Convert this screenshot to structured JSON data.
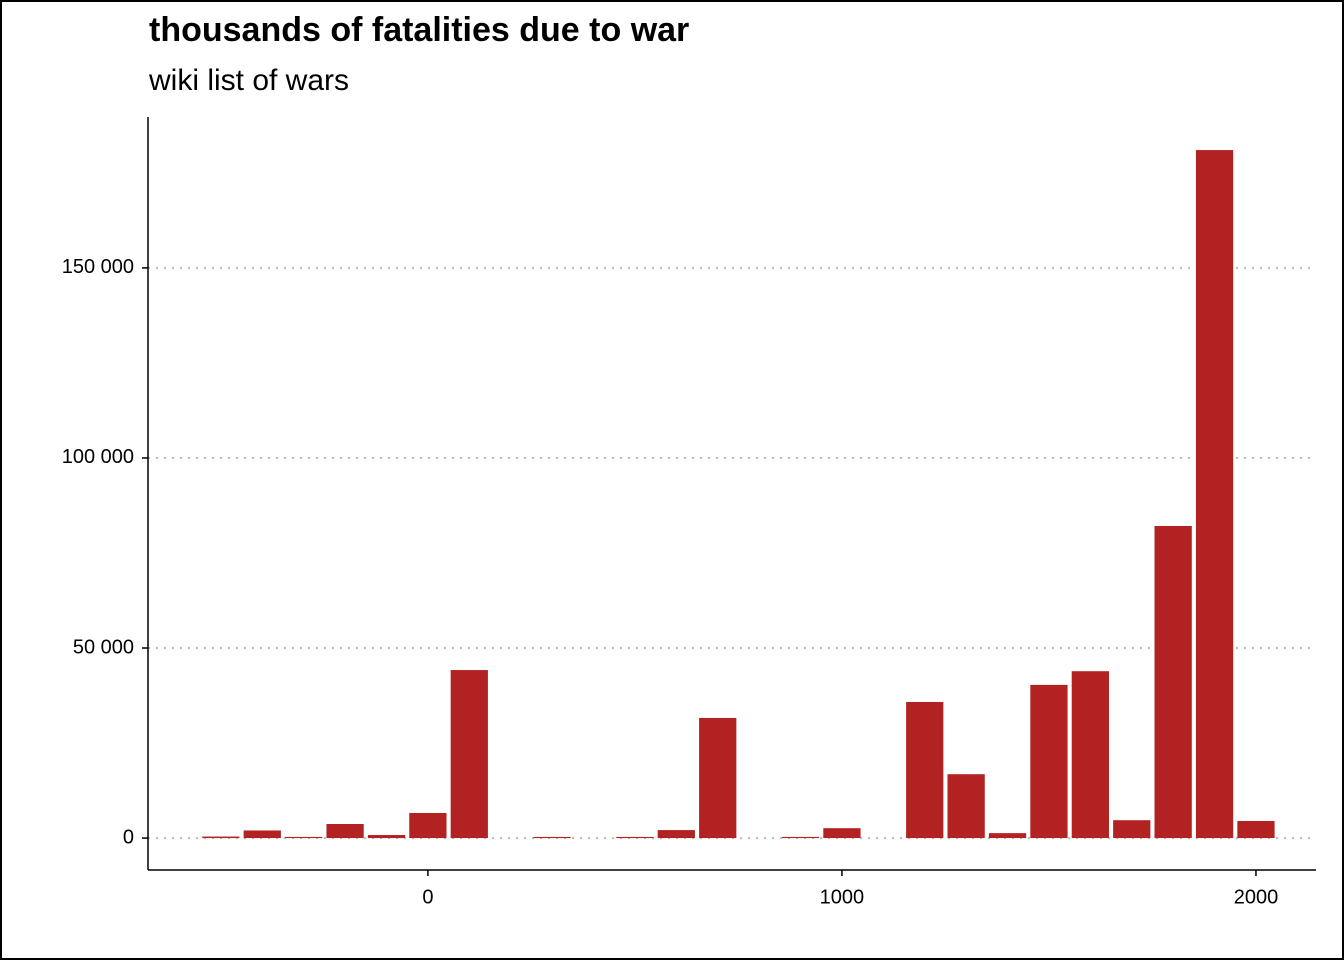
{
  "chart_data": {
    "type": "bar",
    "title": "thousands of fatalities due to war",
    "subtitle": "wiki list of wars",
    "x": [
      -500,
      -400,
      -300,
      -200,
      -100,
      0,
      100,
      300,
      500,
      600,
      700,
      900,
      1000,
      1200,
      1300,
      1400,
      1500,
      1600,
      1700,
      1800,
      1900,
      2000
    ],
    "values": [
      400,
      2000,
      300,
      3700,
      800,
      6600,
      44200,
      300,
      300,
      2100,
      31600,
      300,
      2600,
      35800,
      16800,
      1300,
      40300,
      43900,
      4700,
      82100,
      181000,
      4500
    ],
    "color": "#b22222",
    "xlim": [
      -676,
      2145
    ],
    "ylim": [
      -8400,
      189700
    ],
    "xticks": [
      0,
      1000,
      2000
    ],
    "yticks": [
      0,
      {
        "value": 50000,
        "label": "50 000"
      },
      {
        "value": 100000,
        "label": "100 000"
      },
      {
        "value": 150000,
        "label": "150 000"
      }
    ],
    "grid": true
  }
}
